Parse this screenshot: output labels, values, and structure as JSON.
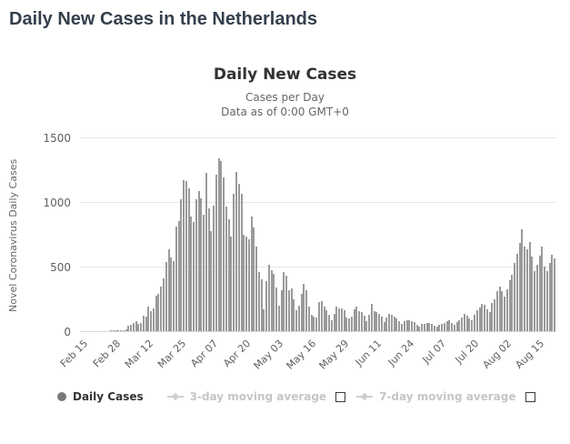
{
  "page": {
    "title": "Daily New Cases in the Netherlands"
  },
  "chart": {
    "title": "Daily New Cases",
    "subtitle": "Cases per Day",
    "data_note": "Data as of 0:00 GMT+0",
    "y_axis_title": "Novel Coronavirus Daily Cases",
    "legend": {
      "daily_cases": "Daily Cases",
      "ma3": "3-day moving average",
      "ma7": "7-day moving average"
    },
    "colors": {
      "bar": "#9a9a9a",
      "grid": "#e6e6e6",
      "axis_line": "#d8d8d8",
      "tick_text": "#606060",
      "title_text": "#333333",
      "subtitle_text": "#666666",
      "legend_active_text": "#333333",
      "legend_inactive_text": "#c6c6c6",
      "legend_marker": "#cfcfcf",
      "legend_circle": "#7a7a7a",
      "page_title_text": "#35404d"
    }
  },
  "chart_data": {
    "type": "bar",
    "title": "Daily New Cases",
    "xlabel": "",
    "ylabel": "Novel Coronavirus Daily Cases",
    "ylim": [
      0,
      1500
    ],
    "y_ticks": [
      0,
      500,
      1000,
      1500
    ],
    "grid": "horizontal",
    "legend_position": "bottom",
    "x_tick_interval": 13,
    "x_tick_labels": [
      "Feb 15",
      "Feb 28",
      "Mar 12",
      "Mar 25",
      "Apr 07",
      "Apr 20",
      "May 03",
      "May 16",
      "May 29",
      "Jun 11",
      "Jun 24",
      "Jul 07",
      "Jul 20",
      "Aug 02",
      "Aug 15"
    ],
    "x": [
      "Feb 15",
      "Feb 16",
      "Feb 17",
      "Feb 18",
      "Feb 19",
      "Feb 20",
      "Feb 21",
      "Feb 22",
      "Feb 23",
      "Feb 24",
      "Feb 25",
      "Feb 26",
      "Feb 27",
      "Feb 28",
      "Feb 29",
      "Mar 01",
      "Mar 02",
      "Mar 03",
      "Mar 04",
      "Mar 05",
      "Mar 06",
      "Mar 07",
      "Mar 08",
      "Mar 09",
      "Mar 10",
      "Mar 11",
      "Mar 12",
      "Mar 13",
      "Mar 14",
      "Mar 15",
      "Mar 16",
      "Mar 17",
      "Mar 18",
      "Mar 19",
      "Mar 20",
      "Mar 21",
      "Mar 22",
      "Mar 23",
      "Mar 24",
      "Mar 25",
      "Mar 26",
      "Mar 27",
      "Mar 28",
      "Mar 29",
      "Mar 30",
      "Mar 31",
      "Apr 01",
      "Apr 02",
      "Apr 03",
      "Apr 04",
      "Apr 05",
      "Apr 06",
      "Apr 07",
      "Apr 08",
      "Apr 09",
      "Apr 10",
      "Apr 11",
      "Apr 12",
      "Apr 13",
      "Apr 14",
      "Apr 15",
      "Apr 16",
      "Apr 17",
      "Apr 18",
      "Apr 19",
      "Apr 20",
      "Apr 21",
      "Apr 22",
      "Apr 23",
      "Apr 24",
      "Apr 25",
      "Apr 26",
      "Apr 27",
      "Apr 28",
      "Apr 29",
      "Apr 30",
      "May 01",
      "May 02",
      "May 03",
      "May 04",
      "May 05",
      "May 06",
      "May 07",
      "May 08",
      "May 09",
      "May 10",
      "May 11",
      "May 12",
      "May 13",
      "May 14",
      "May 15",
      "May 16",
      "May 17",
      "May 18",
      "May 19",
      "May 20",
      "May 21",
      "May 22",
      "May 23",
      "May 24",
      "May 25",
      "May 26",
      "May 27",
      "May 28",
      "May 29",
      "May 30",
      "May 31",
      "Jun 01",
      "Jun 02",
      "Jun 03",
      "Jun 04",
      "Jun 05",
      "Jun 06",
      "Jun 07",
      "Jun 08",
      "Jun 09",
      "Jun 10",
      "Jun 11",
      "Jun 12",
      "Jun 13",
      "Jun 14",
      "Jun 15",
      "Jun 16",
      "Jun 17",
      "Jun 18",
      "Jun 19",
      "Jun 20",
      "Jun 21",
      "Jun 22",
      "Jun 23",
      "Jun 24",
      "Jun 25",
      "Jun 26",
      "Jun 27",
      "Jun 28",
      "Jun 29",
      "Jun 30",
      "Jul 01",
      "Jul 02",
      "Jul 03",
      "Jul 04",
      "Jul 05",
      "Jul 06",
      "Jul 07",
      "Jul 08",
      "Jul 09",
      "Jul 10",
      "Jul 11",
      "Jul 12",
      "Jul 13",
      "Jul 14",
      "Jul 15",
      "Jul 16",
      "Jul 17",
      "Jul 18",
      "Jul 19",
      "Jul 20",
      "Jul 21",
      "Jul 22",
      "Jul 23",
      "Jul 24",
      "Jul 25",
      "Jul 26",
      "Jul 27",
      "Jul 28",
      "Jul 29",
      "Jul 30",
      "Jul 31",
      "Aug 01",
      "Aug 02",
      "Aug 03",
      "Aug 04",
      "Aug 05",
      "Aug 06",
      "Aug 07",
      "Aug 08",
      "Aug 09",
      "Aug 10",
      "Aug 11",
      "Aug 12",
      "Aug 13",
      "Aug 14",
      "Aug 15",
      "Aug 16",
      "Aug 17",
      "Aug 18",
      "Aug 19",
      "Aug 20",
      "Aug 21",
      "Aug 22"
    ],
    "values": [
      0,
      0,
      0,
      0,
      0,
      0,
      0,
      0,
      0,
      0,
      0,
      0,
      1,
      1,
      5,
      10,
      8,
      6,
      15,
      44,
      46,
      60,
      77,
      56,
      61,
      121,
      111,
      190,
      155,
      176,
      278,
      292,
      346,
      409,
      534,
      637,
      573,
      545,
      811,
      852,
      1019,
      1172,
      1159,
      1104,
      884,
      845,
      1019,
      1083,
      1026,
      904,
      1224,
      952,
      777,
      969,
      1213,
      1335,
      1316,
      1188,
      964,
      868,
      734,
      1061,
      1235,
      1140,
      1066,
      750,
      729,
      708,
      887,
      806,
      655,
      455,
      400,
      171,
      386,
      514,
      475,
      445,
      335,
      199,
      317,
      455,
      427,
      319,
      331,
      245,
      161,
      196,
      292,
      363,
      319,
      189,
      125,
      111,
      108,
      224,
      233,
      190,
      162,
      125,
      86,
      133,
      190,
      176,
      178,
      162,
      106,
      96,
      115,
      171,
      190,
      158,
      147,
      119,
      81,
      124,
      210,
      157,
      150,
      131,
      115,
      73,
      108,
      136,
      124,
      114,
      96,
      80,
      56,
      77,
      84,
      87,
      78,
      70,
      52,
      38,
      53,
      59,
      65,
      63,
      53,
      42,
      35,
      48,
      55,
      61,
      77,
      83,
      63,
      48,
      70,
      86,
      106,
      131,
      123,
      97,
      84,
      126,
      159,
      183,
      214,
      201,
      169,
      147,
      216,
      248,
      312,
      342,
      308,
      265,
      327,
      397,
      438,
      525,
      601,
      684,
      786,
      656,
      634,
      688,
      576,
      462,
      516,
      584,
      655,
      498,
      462,
      525,
      590,
      565
    ]
  }
}
